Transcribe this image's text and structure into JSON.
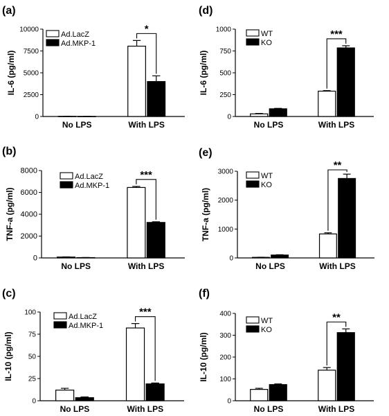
{
  "colors": {
    "control": "#ffffff",
    "treated": "#000000",
    "axis": "#000000"
  },
  "chart_data": [
    {
      "panel_label": "(a)",
      "type": "bar",
      "categories": [
        "No LPS",
        "With LPS"
      ],
      "ylabel": "IL-6  (pg/ml)",
      "ylim": [
        0,
        10000
      ],
      "yticks": [
        0,
        2500,
        5000,
        7500,
        10000
      ],
      "grid": false,
      "legend_position": "top-left",
      "series": [
        {
          "name": "Ad.LacZ",
          "values": [
            20,
            8050
          ],
          "errors": [
            5,
            650
          ]
        },
        {
          "name": "Ad.MKP-1",
          "values": [
            10,
            4000
          ],
          "errors": [
            5,
            650
          ]
        }
      ],
      "significance": {
        "category_index": 1,
        "label": "*"
      }
    },
    {
      "panel_label": "(b)",
      "type": "bar",
      "categories": [
        "No LPS",
        "With LPS"
      ],
      "ylabel": "TNF-a (pg/ml)",
      "ylim": [
        0,
        8000
      ],
      "yticks": [
        0,
        2000,
        4000,
        6000,
        8000
      ],
      "grid": false,
      "legend_position": "top-left",
      "series": [
        {
          "name": "Ad.LacZ",
          "values": [
            80,
            6450
          ],
          "errors": [
            15,
            100
          ]
        },
        {
          "name": "Ad.MKP-1",
          "values": [
            30,
            3250
          ],
          "errors": [
            10,
            60
          ]
        }
      ],
      "significance": {
        "category_index": 1,
        "label": "***"
      }
    },
    {
      "panel_label": "(c)",
      "type": "bar",
      "categories": [
        "No LPS",
        "With LPS"
      ],
      "ylabel": "IL-10 (pg/ml)",
      "ylim": [
        0,
        100
      ],
      "yticks": [
        0,
        25,
        50,
        75,
        100
      ],
      "grid": false,
      "legend_position": "top-left",
      "series": [
        {
          "name": "Ad.LacZ",
          "values": [
            12,
            82
          ],
          "errors": [
            2,
            5
          ]
        },
        {
          "name": "Ad.MKP-1",
          "values": [
            3.5,
            19
          ],
          "errors": [
            0.8,
            1
          ]
        }
      ],
      "significance": {
        "category_index": 1,
        "label": "***"
      }
    },
    {
      "panel_label": "(d)",
      "type": "bar",
      "categories": [
        "No LPS",
        "With LPS"
      ],
      "ylabel": "IL-6 (pg/ml)",
      "ylim": [
        0,
        1000
      ],
      "yticks": [
        0,
        250,
        500,
        750,
        1000
      ],
      "grid": false,
      "legend_position": "top-left",
      "series": [
        {
          "name": "WT",
          "values": [
            30,
            290
          ],
          "errors": [
            5,
            6
          ]
        },
        {
          "name": "KO",
          "values": [
            88,
            785
          ],
          "errors": [
            5,
            25
          ]
        }
      ],
      "significance": {
        "category_index": 1,
        "label": "***"
      }
    },
    {
      "panel_label": "(e)",
      "type": "bar",
      "categories": [
        "No LPS",
        "With LPS"
      ],
      "ylabel": "TNF-a (pg/ml)",
      "ylim": [
        0,
        3000
      ],
      "yticks": [
        0,
        1000,
        2000,
        3000
      ],
      "grid": false,
      "legend_position": "top-left",
      "series": [
        {
          "name": "WT",
          "values": [
            20,
            830
          ],
          "errors": [
            4,
            40
          ]
        },
        {
          "name": "KO",
          "values": [
            100,
            2750
          ],
          "errors": [
            10,
            150
          ]
        }
      ],
      "significance": {
        "category_index": 1,
        "label": "**"
      }
    },
    {
      "panel_label": "(f)",
      "type": "bar",
      "categories": [
        "No LPS",
        "With LPS"
      ],
      "ylabel": "IL-10 (pg/ml)",
      "ylim": [
        0,
        400
      ],
      "yticks": [
        0,
        100,
        200,
        300,
        400
      ],
      "grid": false,
      "legend_position": "top-left",
      "series": [
        {
          "name": "WT",
          "values": [
            52,
            140
          ],
          "errors": [
            5,
            12
          ]
        },
        {
          "name": "KO",
          "values": [
            74,
            312
          ],
          "errors": [
            3,
            17
          ]
        }
      ],
      "significance": {
        "category_index": 1,
        "label": "**"
      }
    }
  ]
}
